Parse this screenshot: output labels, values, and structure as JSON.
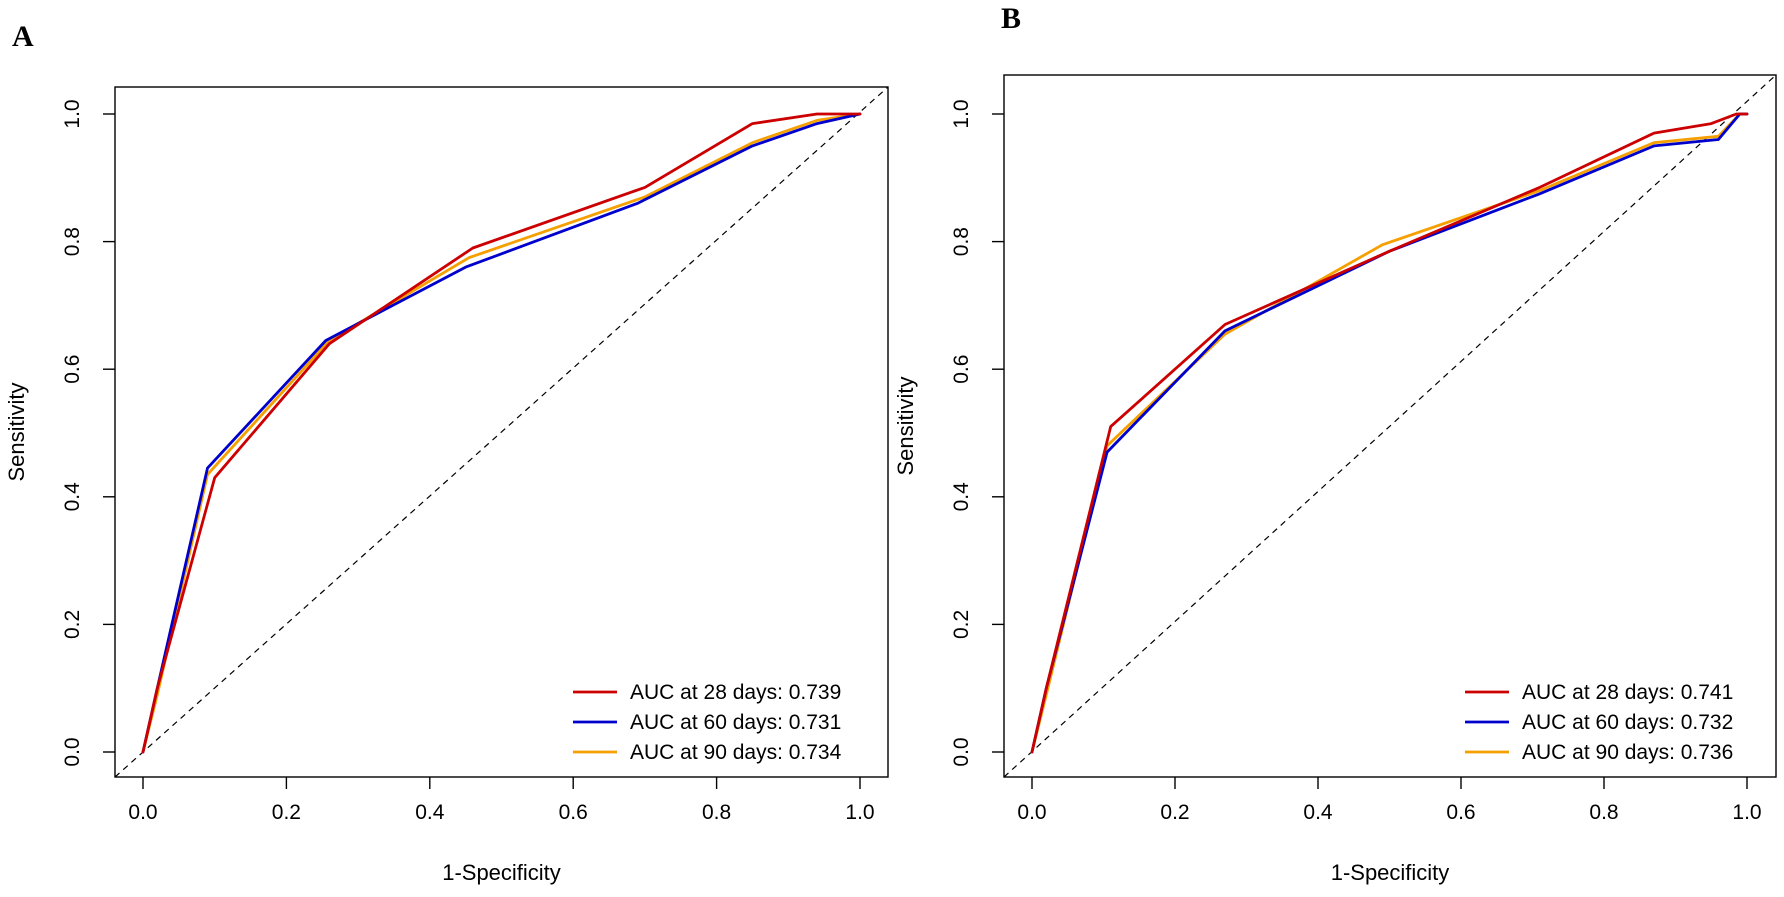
{
  "chart_data": [
    {
      "type": "line",
      "panel": "A",
      "title": "",
      "xlabel": "1-Specificity",
      "ylabel": "Sensitivity",
      "xlim": [
        0,
        1
      ],
      "ylim": [
        0,
        1
      ],
      "xticks": [
        "0.0",
        "0.2",
        "0.4",
        "0.6",
        "0.8",
        "1.0"
      ],
      "yticks": [
        "0.0",
        "0.2",
        "0.4",
        "0.6",
        "0.8",
        "1.0"
      ],
      "reference_line": "diagonal dashed",
      "legend_position": "bottom-right",
      "series": [
        {
          "name": "AUC at 28 days: 0.739",
          "color": "#cc0000",
          "x": [
            0,
            0.02,
            0.1,
            0.26,
            0.46,
            0.7,
            0.85,
            0.94,
            1.0
          ],
          "y": [
            0,
            0.1,
            0.43,
            0.64,
            0.79,
            0.885,
            0.985,
            1.0,
            1.0
          ]
        },
        {
          "name": "AUC at 60 days: 0.731",
          "color": "#0000cc",
          "x": [
            0,
            0.02,
            0.09,
            0.255,
            0.45,
            0.69,
            0.85,
            0.94,
            1.0
          ],
          "y": [
            0,
            0.1,
            0.445,
            0.645,
            0.76,
            0.86,
            0.95,
            0.985,
            1.0
          ]
        },
        {
          "name": "AUC at 90 days: 0.734",
          "color": "#f5a000",
          "x": [
            0,
            0.02,
            0.09,
            0.26,
            0.455,
            0.7,
            0.85,
            0.94,
            1.0
          ],
          "y": [
            0,
            0.09,
            0.435,
            0.645,
            0.775,
            0.87,
            0.955,
            0.99,
            1.0
          ]
        }
      ]
    },
    {
      "type": "line",
      "panel": "B",
      "title": "",
      "xlabel": "1-Specificity",
      "ylabel": "Sensitivity",
      "xlim": [
        0,
        1
      ],
      "ylim": [
        0,
        1
      ],
      "xticks": [
        "0.0",
        "0.2",
        "0.4",
        "0.6",
        "0.8",
        "1.0"
      ],
      "yticks": [
        "0.0",
        "0.2",
        "0.4",
        "0.6",
        "0.8",
        "1.0"
      ],
      "reference_line": "diagonal dashed",
      "legend_position": "bottom-right",
      "series": [
        {
          "name": "AUC at 28 days: 0.741",
          "color": "#cc0000",
          "x": [
            0,
            0.02,
            0.11,
            0.27,
            0.5,
            0.71,
            0.87,
            0.95,
            0.985,
            1.0
          ],
          "y": [
            0,
            0.1,
            0.51,
            0.67,
            0.785,
            0.885,
            0.97,
            0.985,
            1.0,
            1.0
          ]
        },
        {
          "name": "AUC at 60 days: 0.732",
          "color": "#0000cc",
          "x": [
            0,
            0.02,
            0.105,
            0.27,
            0.5,
            0.71,
            0.87,
            0.96,
            0.99,
            1.0
          ],
          "y": [
            0,
            0.1,
            0.47,
            0.66,
            0.785,
            0.875,
            0.95,
            0.96,
            1.0,
            1.0
          ]
        },
        {
          "name": "AUC at 90 days: 0.736",
          "color": "#f5a000",
          "x": [
            0,
            0.02,
            0.105,
            0.27,
            0.49,
            0.71,
            0.87,
            0.96,
            0.99,
            1.0
          ],
          "y": [
            0,
            0.09,
            0.48,
            0.655,
            0.795,
            0.88,
            0.955,
            0.965,
            1.0,
            1.0
          ]
        }
      ]
    }
  ]
}
